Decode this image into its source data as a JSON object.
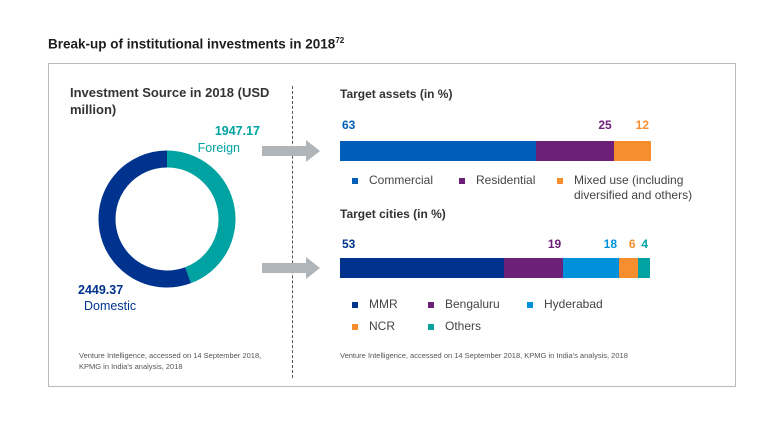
{
  "page_title": "Break-up of institutional investments in 2018",
  "page_title_ref": "72",
  "colors": {
    "navy": "#00338d",
    "teal": "#00a3a1",
    "blue": "#0091da",
    "purple": "#6d2077",
    "orange": "#f68d2e",
    "arrow_gray": "#b0b5b9"
  },
  "left": {
    "title": "Investment Source in 2018 (USD million)",
    "foreign_value": "1947.17",
    "foreign_label": "Foreign",
    "domestic_value": "2449.37",
    "domestic_label": "Domestic",
    "source": "Venture Intelligence, accessed on 14 September 2018, KPMG in India's analysis, 2018"
  },
  "right": {
    "assets_title": "Target assets (in %)",
    "cities_title": "Target cities (in %)",
    "source": "Venture Intelligence, accessed on 14 September 2018, KPMG in India's analysis, 2018",
    "assets_legend": [
      "Commercial",
      "Residential",
      "Mixed use (including diversified and others)"
    ],
    "cities_legend": [
      "MMR",
      "Bengaluru",
      "Hyderabad",
      "NCR",
      "Others"
    ]
  },
  "chart_data": [
    {
      "type": "pie",
      "title": "Investment Source in 2018 (USD million)",
      "categories": [
        "Foreign",
        "Domestic"
      ],
      "values": [
        1947.17,
        2449.37
      ]
    },
    {
      "type": "bar",
      "title": "Target assets (in %)",
      "orientation": "horizontal-stacked",
      "categories": [
        "Commercial",
        "Residential",
        "Mixed use (including diversified and others)"
      ],
      "values": [
        63,
        25,
        12
      ]
    },
    {
      "type": "bar",
      "title": "Target cities (in %)",
      "orientation": "horizontal-stacked",
      "categories": [
        "MMR",
        "Bengaluru",
        "Hyderabad",
        "NCR",
        "Others"
      ],
      "values": [
        53,
        19,
        18,
        6,
        4
      ]
    }
  ]
}
